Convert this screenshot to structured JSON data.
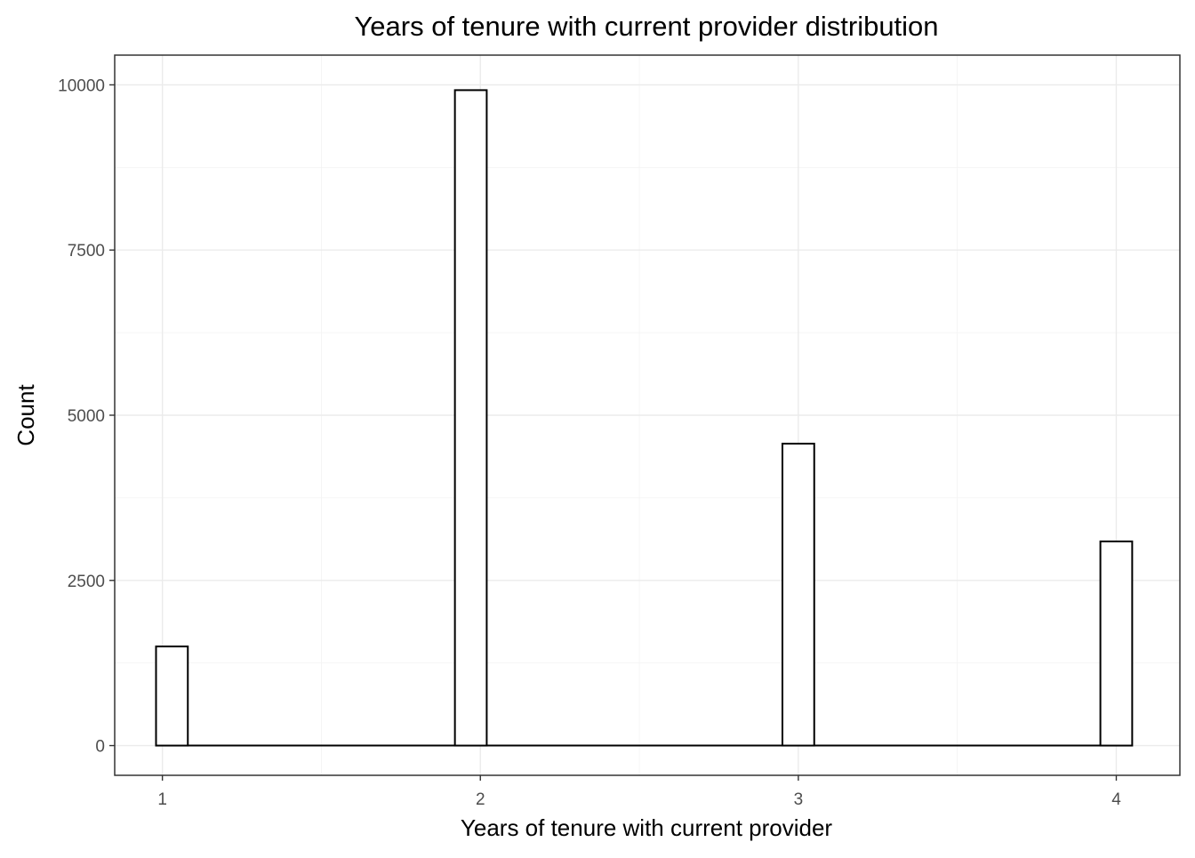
{
  "chart_data": {
    "type": "bar",
    "title": "Years of tenure with current provider distribution",
    "xlabel": "Years of tenure with current provider",
    "ylabel": "Count",
    "x_ticks": [
      "1",
      "2",
      "3",
      "4"
    ],
    "y_ticks": [
      "0",
      "2500",
      "5000",
      "7500",
      "10000"
    ],
    "xlim": [
      0.85,
      4.2
    ],
    "ylim": [
      -450,
      10450
    ],
    "bars": [
      {
        "x_start": 0.98,
        "x_end": 1.08,
        "value": 1500
      },
      {
        "x_start": 1.08,
        "x_end": 1.92,
        "value": 0
      },
      {
        "x_start": 1.92,
        "x_end": 2.02,
        "value": 9920
      },
      {
        "x_start": 2.02,
        "x_end": 2.95,
        "value": 0
      },
      {
        "x_start": 2.95,
        "x_end": 3.05,
        "value": 4570
      },
      {
        "x_start": 3.05,
        "x_end": 3.95,
        "value": 0
      },
      {
        "x_start": 3.95,
        "x_end": 4.05,
        "value": 3090
      }
    ],
    "grid": true,
    "legend": "none",
    "colors": {
      "bar_fill": "#ffffff",
      "bar_outline": "#000000",
      "panel_background": "#ffffff",
      "grid": "#ebebeb",
      "border": "#333333"
    }
  }
}
